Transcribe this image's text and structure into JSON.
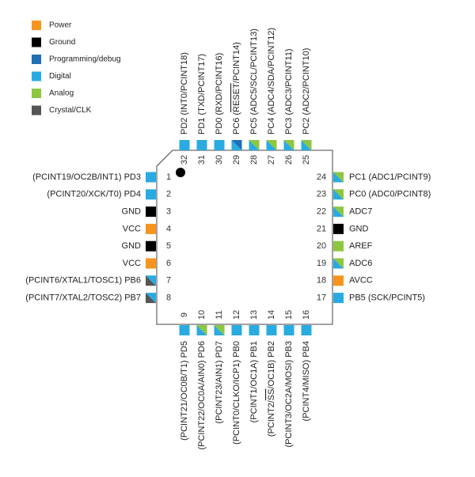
{
  "legend": [
    {
      "label": "Power",
      "color": "#f7941d"
    },
    {
      "label": "Ground",
      "color": "#000000"
    },
    {
      "label": "Programming/debug",
      "color": "#1f6fb5"
    },
    {
      "label": "Digital",
      "color": "#29abe2"
    },
    {
      "label": "Analog",
      "color": "#8dc63f"
    },
    {
      "label": "Crystal/CLK",
      "color": "#555555"
    }
  ],
  "pins": {
    "left": [
      {
        "number": 1,
        "label": "(PCINT19/OC2B/INT1) PD3",
        "colors": [
          "#29abe2"
        ]
      },
      {
        "number": 2,
        "label": "(PCINT20/XCK/T0) PD4",
        "colors": [
          "#29abe2"
        ]
      },
      {
        "number": 3,
        "label": "GND",
        "colors": [
          "#000000"
        ]
      },
      {
        "number": 4,
        "label": "VCC",
        "colors": [
          "#f7941d"
        ]
      },
      {
        "number": 5,
        "label": "GND",
        "colors": [
          "#000000"
        ]
      },
      {
        "number": 6,
        "label": "VCC",
        "colors": [
          "#f7941d"
        ]
      },
      {
        "number": 7,
        "label": "(PCINT6/XTAL1/TOSC1) PB6",
        "colors": [
          "#555555",
          "#29abe2"
        ]
      },
      {
        "number": 8,
        "label": "(PCINT7/XTAL2/TOSC2) PB7",
        "colors": [
          "#555555",
          "#29abe2"
        ]
      }
    ],
    "bottom": [
      {
        "number": 9,
        "label": "(PCINT21/OC0B/T1) PD5",
        "colors": [
          "#29abe2"
        ]
      },
      {
        "number": 10,
        "label": "(PCINT22/OC0A/AIN0) PD6",
        "colors": [
          "#29abe2",
          "#8dc63f"
        ]
      },
      {
        "number": 11,
        "label": "(PCINT23/AIN1) PD7",
        "colors": [
          "#29abe2",
          "#8dc63f"
        ]
      },
      {
        "number": 12,
        "label": "(PCINT0/CLKO/ICP1) PB0",
        "colors": [
          "#29abe2"
        ]
      },
      {
        "number": 13,
        "label": "(PCINT1/OC1A) PB1",
        "colors": [
          "#29abe2"
        ]
      },
      {
        "number": 14,
        "label": [
          "(PCINT2/",
          "SS",
          "/OC1B) PB2"
        ],
        "colors": [
          "#29abe2"
        ]
      },
      {
        "number": 15,
        "label": "(PCINT3/OC2A/MOSI) PB3",
        "colors": [
          "#29abe2"
        ]
      },
      {
        "number": 16,
        "label": "(PCINT4/MISO) PB4",
        "colors": [
          "#29abe2"
        ]
      }
    ],
    "right": [
      {
        "number": 24,
        "label": "PC1 (ADC1/PCINT9)",
        "colors": [
          "#29abe2",
          "#8dc63f"
        ]
      },
      {
        "number": 23,
        "label": "PC0 (ADC0/PCINT8)",
        "colors": [
          "#29abe2",
          "#8dc63f"
        ]
      },
      {
        "number": 22,
        "label": "ADC7",
        "colors": [
          "#29abe2",
          "#8dc63f"
        ]
      },
      {
        "number": 21,
        "label": "GND",
        "colors": [
          "#000000"
        ]
      },
      {
        "number": 20,
        "label": "AREF",
        "colors": [
          "#8dc63f"
        ]
      },
      {
        "number": 19,
        "label": "ADC6",
        "colors": [
          "#29abe2",
          "#8dc63f"
        ]
      },
      {
        "number": 18,
        "label": "AVCC",
        "colors": [
          "#f7941d"
        ]
      },
      {
        "number": 17,
        "label": "PB5 (SCK/PCINT5)",
        "colors": [
          "#29abe2"
        ]
      }
    ],
    "top": [
      {
        "number": 32,
        "label": "PD2 (INT0/PCINT18)",
        "colors": [
          "#29abe2"
        ]
      },
      {
        "number": 31,
        "label": "PD1 (TXD/PCINT17)",
        "colors": [
          "#29abe2"
        ]
      },
      {
        "number": 30,
        "label": "PD0 (RXD/PCINT16)",
        "colors": [
          "#29abe2"
        ]
      },
      {
        "number": 29,
        "label": [
          "PC6 (",
          "RESET",
          "/PCINT14)"
        ],
        "colors": [
          "#29abe2",
          "#1f6fb5"
        ]
      },
      {
        "number": 28,
        "label": "PC5 (ADC5/SCL/PCINT13)",
        "colors": [
          "#29abe2",
          "#8dc63f"
        ]
      },
      {
        "number": 27,
        "label": "PC4 (ADC4/SDA/PCINT12)",
        "colors": [
          "#29abe2",
          "#8dc63f"
        ]
      },
      {
        "number": 26,
        "label": "PC3 (ADC3/PCINT11)",
        "colors": [
          "#29abe2",
          "#8dc63f"
        ]
      },
      {
        "number": 25,
        "label": "PC2 (ADC2/PCINT10)",
        "colors": [
          "#29abe2",
          "#8dc63f"
        ]
      }
    ]
  }
}
